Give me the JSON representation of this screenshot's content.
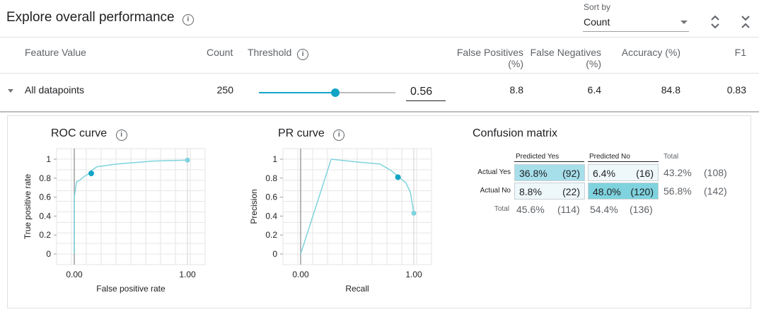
{
  "header": {
    "title": "Explore overall performance",
    "info_icon": "info-icon",
    "sort_by_label": "Sort by",
    "sort_by_value": "Count",
    "expand_icon": "unfold-more-icon",
    "collapse_icon": "unfold-less-icon"
  },
  "columns": {
    "feature_value": "Feature Value",
    "count": "Count",
    "threshold": "Threshold",
    "false_positives_line1": "False Positives",
    "false_positives_line2": "(%)",
    "false_negatives_line1": "False Negatives",
    "false_negatives_line2": "(%)",
    "accuracy": "Accuracy (%)",
    "f1": "F1"
  },
  "row": {
    "label": "All datapoints",
    "count": "250",
    "threshold": "0.56",
    "threshold_fraction": 0.56,
    "false_positives": "8.8",
    "false_negatives": "6.4",
    "accuracy": "84.8",
    "f1": "0.83"
  },
  "roc": {
    "title": "ROC curve",
    "xlabel": "False positive rate",
    "ylabel": "True positive rate",
    "x_ticks": [
      "0.00",
      "1.00"
    ],
    "y_ticks": [
      "1",
      "0.8",
      "0.6",
      "0.4",
      "0.2",
      "0"
    ]
  },
  "pr": {
    "title": "PR curve",
    "xlabel": "Recall",
    "ylabel": "Precision",
    "x_ticks": [
      "0.00",
      "1.00"
    ],
    "y_ticks": [
      "1",
      "0.8",
      "0.6",
      "0.4",
      "0.2",
      "0"
    ]
  },
  "chart_data": [
    {
      "type": "line",
      "title": "ROC curve",
      "xlabel": "False positive rate",
      "ylabel": "True positive rate",
      "xlim": [
        0,
        1
      ],
      "ylim": [
        0,
        1
      ],
      "points": [
        [
          0,
          0
        ],
        [
          0,
          0.6
        ],
        [
          0.02,
          0.76
        ],
        [
          0.05,
          0.78
        ],
        [
          0.09,
          0.82
        ],
        [
          0.12,
          0.84
        ],
        [
          0.15,
          0.88
        ],
        [
          0.2,
          0.92
        ],
        [
          0.38,
          0.95
        ],
        [
          0.7,
          0.98
        ],
        [
          1,
          0.99
        ]
      ],
      "marker": [
        0.15,
        0.85
      ],
      "end_marker": [
        1,
        0.99
      ],
      "color": "#7fd3de"
    },
    {
      "type": "line",
      "title": "PR curve",
      "xlabel": "Recall",
      "ylabel": "Precision",
      "xlim": [
        0,
        1
      ],
      "ylim": [
        0,
        1
      ],
      "points": [
        [
          0,
          0
        ],
        [
          0.27,
          1
        ],
        [
          0.5,
          0.97
        ],
        [
          0.7,
          0.95
        ],
        [
          0.8,
          0.88
        ],
        [
          0.86,
          0.82
        ],
        [
          0.93,
          0.75
        ],
        [
          0.97,
          0.65
        ],
        [
          1,
          0.43
        ]
      ],
      "marker": [
        0.86,
        0.81
      ],
      "end_marker": [
        1,
        0.43
      ],
      "color": "#7fd3de"
    }
  ],
  "confusion": {
    "title": "Confusion matrix",
    "predicted_yes": "Predicted Yes",
    "predicted_no": "Predicted No",
    "total": "Total",
    "actual_yes": "Actual Yes",
    "actual_no": "Actual No",
    "tp_pct": "36.8%",
    "tp_cnt": "(92)",
    "fn_pct": "6.4%",
    "fn_cnt": "(16)",
    "fp_pct": "8.8%",
    "fp_cnt": "(22)",
    "tn_pct": "48.0%",
    "tn_cnt": "(120)",
    "row1_total_pct": "43.2%",
    "row1_total_cnt": "(108)",
    "row2_total_pct": "56.8%",
    "row2_total_cnt": "(142)",
    "col1_total_pct": "45.6%",
    "col1_total_cnt": "(114)",
    "col2_total_pct": "54.4%",
    "col2_total_cnt": "(136)",
    "colors": {
      "tp": "#a6dfea",
      "fn": "#eef7fa",
      "fp": "#eef7fa",
      "tn": "#7fd3de"
    }
  },
  "colors": {
    "accent": "#12a4c4",
    "curve": "#7fd3de"
  }
}
